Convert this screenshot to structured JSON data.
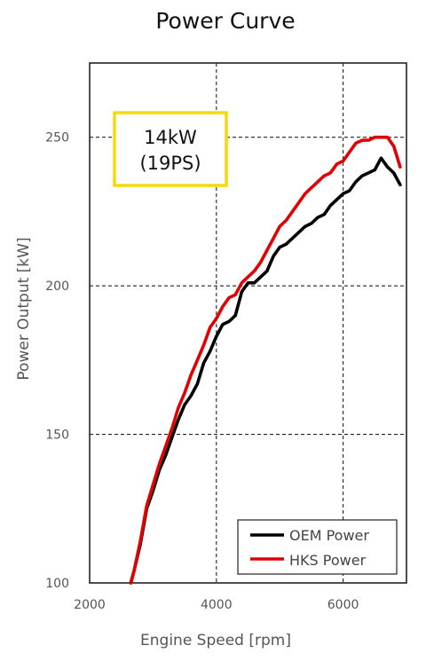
{
  "chart_data": {
    "type": "line",
    "title": "Power Curve",
    "xlabel": "Engine Speed [rpm]",
    "ylabel": "Power Output [kW]",
    "xlim": [
      2000,
      7000
    ],
    "ylim": [
      100,
      275
    ],
    "xticks": [
      2000,
      4000,
      6000
    ],
    "yticks": [
      100,
      150,
      200,
      250
    ],
    "grid": "dashed at ticks 4000, 6000 and 150, 200, 250",
    "legend_position": "bottom-right",
    "annotation": {
      "line1": "14kW",
      "line2": "(19PS)",
      "border_color": "#f5d90a"
    },
    "series": [
      {
        "name": "OEM Power",
        "color": "#000000",
        "x": [
          2650,
          2700,
          2800,
          2900,
          3000,
          3100,
          3200,
          3300,
          3400,
          3500,
          3600,
          3700,
          3800,
          3900,
          4000,
          4100,
          4200,
          4300,
          4400,
          4500,
          4600,
          4700,
          4800,
          4900,
          5000,
          5100,
          5200,
          5300,
          5400,
          5500,
          5600,
          5700,
          5800,
          5900,
          6000,
          6100,
          6200,
          6300,
          6400,
          6500,
          6600,
          6700,
          6800,
          6900
        ],
        "values": [
          100,
          104,
          113,
          125,
          131,
          138,
          143,
          149,
          155,
          160,
          163,
          167,
          174,
          178,
          183,
          187,
          188,
          190,
          198,
          201,
          201,
          203,
          205,
          210,
          213,
          214,
          216,
          218,
          220,
          221,
          223,
          224,
          227,
          229,
          231,
          232,
          235,
          237,
          238,
          239,
          243,
          240,
          238,
          234
        ]
      },
      {
        "name": "HKS Power",
        "color": "#e00000",
        "x": [
          2650,
          2700,
          2800,
          2900,
          3000,
          3100,
          3200,
          3300,
          3400,
          3500,
          3600,
          3700,
          3800,
          3900,
          4000,
          4100,
          4200,
          4300,
          4400,
          4500,
          4600,
          4700,
          4800,
          4900,
          5000,
          5100,
          5200,
          5300,
          5400,
          5500,
          5600,
          5700,
          5800,
          5900,
          6000,
          6100,
          6200,
          6300,
          6400,
          6500,
          6600,
          6700,
          6800,
          6900
        ],
        "values": [
          100,
          104,
          114,
          126,
          133,
          140,
          146,
          152,
          159,
          164,
          170,
          175,
          180,
          186,
          189,
          193,
          196,
          197,
          201,
          203,
          205,
          208,
          212,
          216,
          220,
          222,
          225,
          228,
          231,
          233,
          235,
          237,
          238,
          241,
          242,
          245,
          248,
          249,
          249,
          250,
          250,
          250,
          247,
          240
        ]
      }
    ]
  }
}
